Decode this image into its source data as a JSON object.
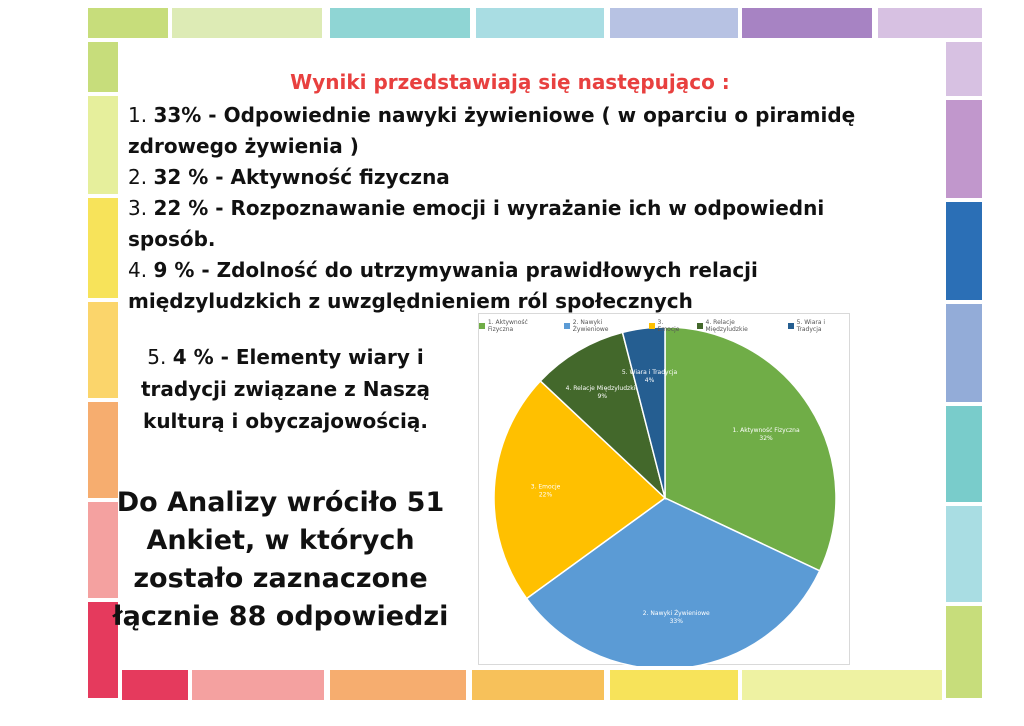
{
  "heading": "Wyniki przedstawiają się następująco :",
  "list": [
    {
      "num": "1.",
      "pct": "33% - ",
      "text": "Odpowiednie nawyki żywieniowe ( w oparciu o piramidę zdrowego żywienia )"
    },
    {
      "num": "2.",
      "pct": "32 % - ",
      "text": "Aktywność fizyczna"
    },
    {
      "num": "3.",
      "pct": "22 % - ",
      "text": "Rozpoznawanie emocji i wyrażanie ich w odpowiedni sposób."
    },
    {
      "num": "4.",
      "pct": "9 % - ",
      "text": "Zdolność do utrzymywania prawidłowych relacji międzyludzkich z uwzględnieniem ról społecznych"
    }
  ],
  "item5": {
    "num": "5.",
    "pct": "4 % - ",
    "text": "Elementy wiary i tradycji związane z Naszą kulturą i obyczajowością."
  },
  "summary": "Do Analizy wróciło 51 Ankiet, w których zostało zaznaczone łącznie 88 odpowiedzi",
  "colors": {
    "heading": "#e8403f"
  },
  "chart_data": {
    "type": "pie",
    "legend_position": "top",
    "legend": [
      "1. Aktywność Fizyczna",
      "2. Nawyki Żywieniowe",
      "3. Emocje",
      "4. Relacje Międzyludzkie",
      "5. Wiara i Tradycja"
    ],
    "slices": [
      {
        "name": "1. Aktywność Fizyczna",
        "value": 32,
        "pct_label": "32%",
        "color": "#70ad47"
      },
      {
        "name": "2. Nawyki Żywieniowe",
        "value": 33,
        "pct_label": "33%",
        "color": "#5b9bd5"
      },
      {
        "name": "3. Emocje",
        "value": 22,
        "pct_label": "22%",
        "color": "#ffc000"
      },
      {
        "name": "4. Relacje Międzyludzkie",
        "value": 9,
        "pct_label": "9%",
        "color": "#43682b"
      },
      {
        "name": "5. Wiara i Tradycja",
        "value": 4,
        "pct_label": "4%",
        "color": "#255e91"
      }
    ]
  }
}
